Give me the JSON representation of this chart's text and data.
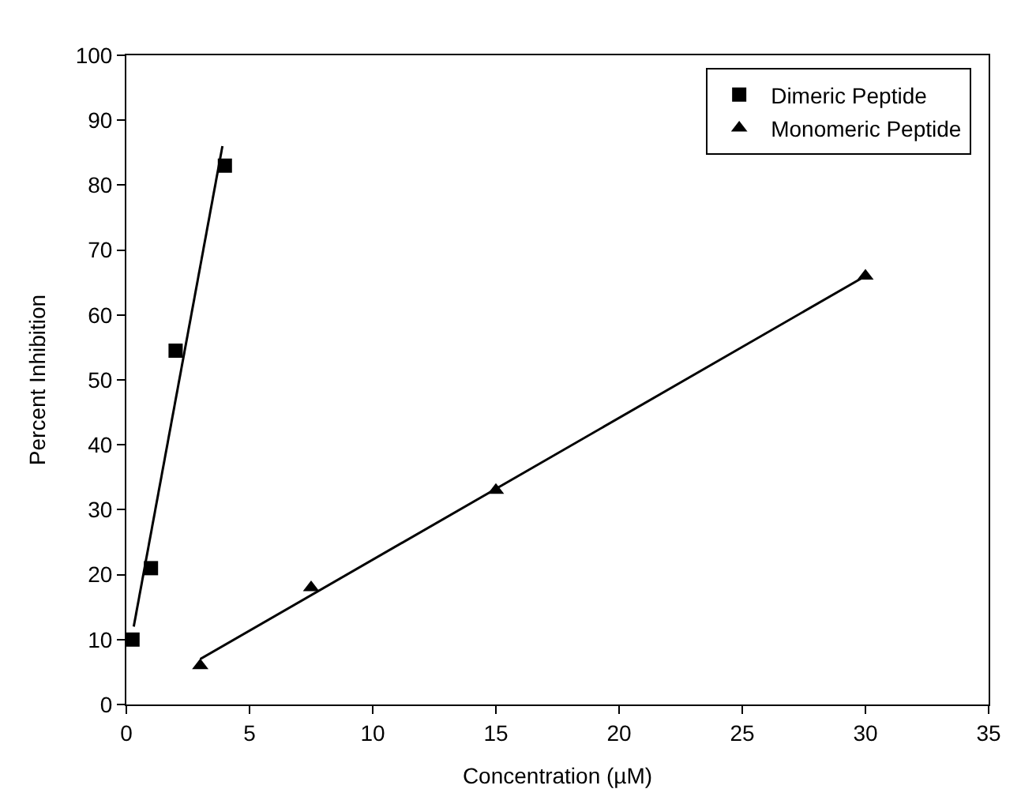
{
  "chart_data": {
    "type": "scatter",
    "xlabel": "Concentration (µM)",
    "ylabel": "Percent Inhibition",
    "series": [
      {
        "name": "Dimeric Peptide",
        "color": "#000000",
        "marker": "square",
        "x": [
          0.25,
          1,
          2,
          4
        ],
        "values": [
          10,
          21,
          54.5,
          83
        ]
      },
      {
        "name": "Monomeric Peptide",
        "color": "#000000",
        "marker": "triangle",
        "x": [
          3,
          7.5,
          15,
          30
        ],
        "values": [
          6,
          18,
          33,
          66
        ]
      },
      {
        "type": "line",
        "color": "#000000",
        "marker": "none",
        "x": [
          0.3,
          3.9
        ],
        "values": [
          12,
          86
        ]
      },
      {
        "type": "line",
        "color": "#000000",
        "marker": "none",
        "x": [
          3,
          30
        ],
        "values": [
          7,
          66
        ]
      }
    ],
    "xlim": [
      0,
      35
    ],
    "xticks": [
      0,
      5,
      10,
      15,
      20,
      25,
      30,
      35
    ],
    "ylim": [
      0,
      100
    ],
    "yticks": [
      0,
      10,
      20,
      30,
      40,
      50,
      60,
      70,
      80,
      90,
      100
    ],
    "legend": "top right"
  }
}
